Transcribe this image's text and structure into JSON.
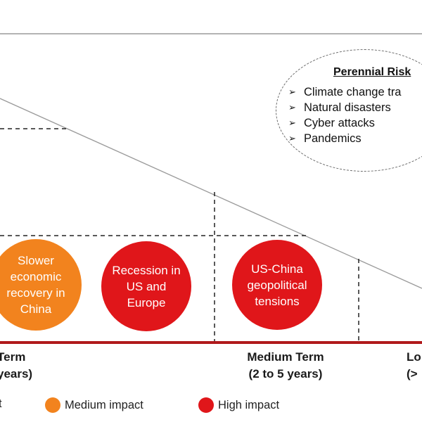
{
  "perennial_risks": {
    "title": "Perennial Risk",
    "items": [
      "Climate change tra",
      "Natural disasters",
      "Cyber attacks",
      "Pandemics"
    ]
  },
  "risks": [
    {
      "text": "Slower\neconomic\nrecovery in\nChina",
      "impact": "medium"
    },
    {
      "text": "Recession in\nUS and\nEurope",
      "impact": "high"
    },
    {
      "text": "US-China\ngeopolitical\ntensions",
      "impact": "high"
    }
  ],
  "terms": {
    "short": {
      "name": "Term",
      "range": "years)"
    },
    "medium": {
      "name": "Medium Term",
      "range": "(2 to 5 years)"
    },
    "long": {
      "name": "Lo",
      "range": "(>"
    }
  },
  "legend": [
    {
      "label": "t",
      "color": ""
    },
    {
      "label": "Medium impact",
      "color": "#f2831e"
    },
    {
      "label": "High impact",
      "color": "#e0161a"
    }
  ],
  "colors": {
    "medium": "#f2831e",
    "high": "#e0161a",
    "axis": "#b0191b"
  }
}
